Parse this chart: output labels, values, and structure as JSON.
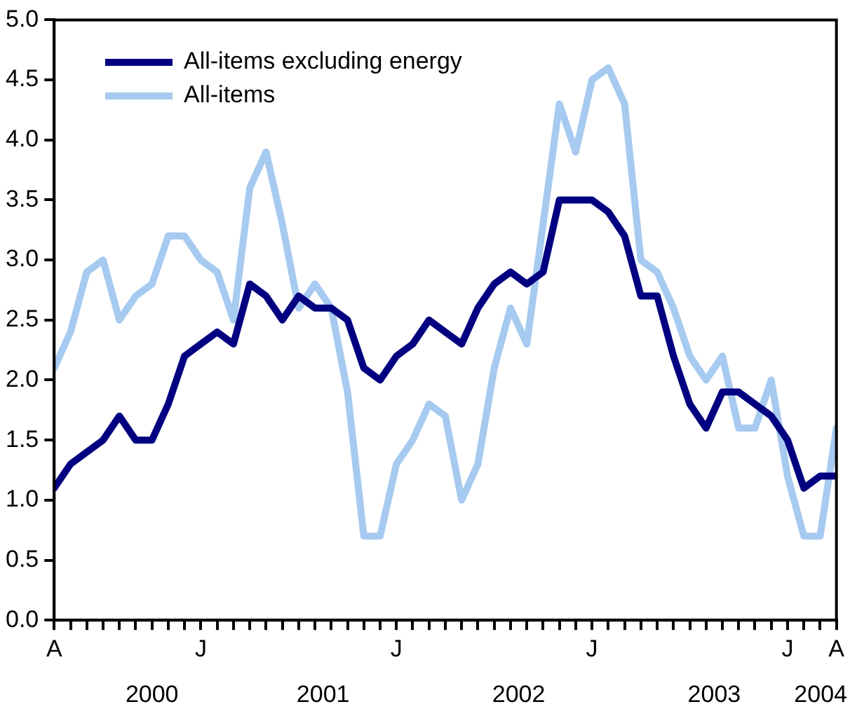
{
  "chart_data": {
    "type": "line",
    "categories": [
      "A",
      null,
      null,
      null,
      null,
      null,
      null,
      null,
      null,
      "J",
      null,
      null,
      null,
      null,
      null,
      null,
      null,
      null,
      null,
      null,
      null,
      "J",
      null,
      null,
      null,
      null,
      null,
      null,
      null,
      null,
      null,
      null,
      null,
      "J",
      null,
      null,
      null,
      null,
      null,
      null,
      null,
      null,
      null,
      null,
      null,
      "J",
      null,
      null,
      "A"
    ],
    "series": [
      {
        "name": "All-items excluding energy",
        "color": "#000080",
        "values": [
          1.1,
          1.3,
          1.4,
          1.5,
          1.7,
          1.5,
          1.5,
          1.8,
          2.2,
          2.3,
          2.4,
          2.3,
          2.8,
          2.7,
          2.5,
          2.7,
          2.6,
          2.6,
          2.5,
          2.1,
          2.0,
          2.2,
          2.3,
          2.5,
          2.4,
          2.3,
          2.6,
          2.8,
          2.9,
          2.8,
          2.9,
          3.5,
          3.5,
          3.5,
          3.4,
          3.2,
          2.7,
          2.7,
          2.2,
          1.8,
          1.6,
          1.9,
          1.9,
          1.8,
          1.7,
          1.5,
          1.1,
          1.2,
          1.2
        ]
      },
      {
        "name": "All-items",
        "color": "#a6caf0",
        "values": [
          2.1,
          2.4,
          2.9,
          3.0,
          2.5,
          2.7,
          2.8,
          3.2,
          3.2,
          3.0,
          2.9,
          2.5,
          3.6,
          3.9,
          3.3,
          2.6,
          2.8,
          2.6,
          1.9,
          0.7,
          0.7,
          1.3,
          1.5,
          1.8,
          1.7,
          1.0,
          1.3,
          2.1,
          2.6,
          2.3,
          3.3,
          4.3,
          3.9,
          4.5,
          4.6,
          4.3,
          3.0,
          2.9,
          2.6,
          2.2,
          2.0,
          2.2,
          1.6,
          1.6,
          2.0,
          1.2,
          0.7,
          0.7,
          1.6
        ]
      }
    ],
    "ylim": [
      0,
      5
    ],
    "yticks": [
      {
        "value": 0,
        "label": "0.0"
      },
      {
        "value": 0.5,
        "label": "0.5"
      },
      {
        "value": 1,
        "label": "1.0"
      },
      {
        "value": 1.5,
        "label": "1.5"
      },
      {
        "value": 2,
        "label": "2.0"
      },
      {
        "value": 2.5,
        "label": "2.5"
      },
      {
        "value": 3,
        "label": "3.0"
      },
      {
        "value": 3.5,
        "label": "3.5"
      },
      {
        "value": 4,
        "label": "4.0"
      },
      {
        "value": 4.5,
        "label": "4.5"
      },
      {
        "value": 5,
        "label": "5.0"
      }
    ],
    "annotations": [
      "2000",
      "2001",
      "2002",
      "2003",
      "2004"
    ],
    "grid": false,
    "legend": "top left",
    "marker": "none",
    "line_style": "solid"
  }
}
